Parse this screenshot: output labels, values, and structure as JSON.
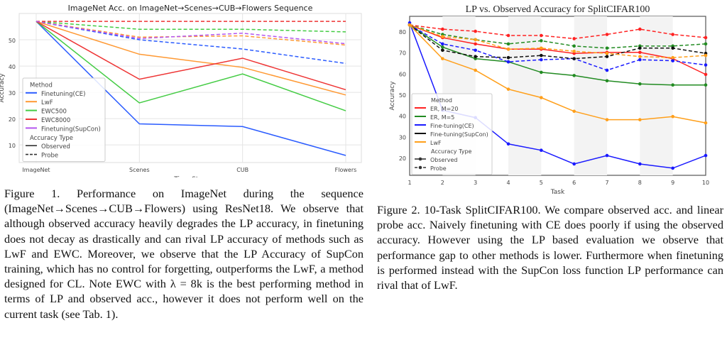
{
  "chart_data": [
    {
      "type": "line",
      "title": "ImageNet Acc. on ImageNet→Scenes→CUB→Flowers Sequence",
      "xlabel": "Time Step",
      "ylabel": "Accuracy",
      "categories": [
        "ImageNet",
        "Scenes",
        "CUB",
        "Flowers"
      ],
      "yticks": [
        10,
        20,
        30,
        40,
        50
      ],
      "ylim": [
        3.3,
        60
      ],
      "grid": true,
      "legend_placement": "lower-left",
      "legend_title": "Method",
      "legend_type_title": "Accuracy Type",
      "legend_types": [
        "Observed",
        "Probe"
      ],
      "series": [
        {
          "name": "Finetuning(CE)",
          "color": "#2b5cff",
          "observed": [
            57,
            18,
            17,
            6
          ],
          "probe": [
            57,
            50,
            46.5,
            41
          ]
        },
        {
          "name": "LwF",
          "color": "#ff9933",
          "observed": [
            57,
            44.5,
            39.5,
            29
          ],
          "probe": [
            57,
            51,
            51.5,
            48
          ]
        },
        {
          "name": "EWC500",
          "color": "#44cc44",
          "observed": [
            57,
            26,
            37,
            23
          ],
          "probe": [
            57,
            54,
            54,
            53
          ]
        },
        {
          "name": "EWC8000",
          "color": "#ee3333",
          "observed": [
            57,
            35,
            43,
            31
          ],
          "probe": [
            57,
            57,
            57,
            57
          ]
        },
        {
          "name": "Finetuning(SupCon)",
          "color": "#b455ee",
          "observed": null,
          "probe": [
            57,
            50.5,
            52.5,
            48.5
          ]
        }
      ]
    },
    {
      "type": "line",
      "title": "LP vs. Observed Accuracy for SplitCIFAR100",
      "xlabel": "Task",
      "ylabel": "Accuracy",
      "categories": [
        "1",
        "2",
        "3",
        "4",
        "5",
        "6",
        "7",
        "8",
        "9",
        "10"
      ],
      "yticks": [
        20,
        30,
        40,
        50,
        60,
        70,
        80
      ],
      "ylim": [
        11.6,
        87.1
      ],
      "grid": false,
      "legend_placement": "lower-left",
      "legend_title": "Method",
      "legend_type_title": "Accuracy Type",
      "legend_types": [
        "Observed",
        "Probe"
      ],
      "series": [
        {
          "name": "ER, M=20",
          "color": "#ff2222",
          "observed": [
            83,
            77,
            74,
            71.5,
            71.5,
            69.5,
            70,
            70,
            67,
            59.5
          ],
          "probe": [
            83,
            81,
            80,
            78,
            78,
            76.5,
            78.5,
            81,
            78.5,
            77
          ]
        },
        {
          "name": "ER, M=5",
          "color": "#228b22",
          "observed": [
            83,
            72.5,
            67,
            65.5,
            60.5,
            59,
            56.5,
            55,
            54.5,
            54.5
          ],
          "probe": [
            83,
            78.5,
            76,
            74,
            75.5,
            73,
            72,
            73,
            73,
            74
          ]
        },
        {
          "name": "Fine-tuning(CE)",
          "color": "#1a1aff",
          "observed": [
            84,
            42.5,
            39,
            26.5,
            23.5,
            17,
            21,
            17,
            15,
            21
          ],
          "probe": [
            83,
            74,
            71,
            65.5,
            66.5,
            67,
            61.5,
            66.5,
            66,
            64
          ]
        },
        {
          "name": "Fine-tuning(SupCon)",
          "color": "#111111",
          "observed": null,
          "probe": [
            83,
            71,
            68,
            67.5,
            68.5,
            67,
            68,
            72,
            72,
            69.5
          ]
        },
        {
          "name": "LwF",
          "color": "#ff9f1a",
          "observed": [
            83,
            67,
            61.5,
            52.5,
            48.5,
            42,
            38,
            38,
            39.5,
            36.5
          ],
          "probe": [
            83,
            77.5,
            76,
            71.5,
            72,
            70.5,
            69.5,
            68,
            67.5,
            68.5
          ]
        }
      ]
    }
  ],
  "captions": {
    "fig1": "Figure 1. Performance on ImageNet during the sequence (ImageNet→Scenes→CUB→Flowers) using ResNet18. We observe that although observed accuracy heavily degrades the LP accuracy, in finetuning does not decay as drastically and can rival LP accuracy of methods such as LwF and EWC. Moreover, we observe that the LP Accuracy of SupCon training, which has no control for forgetting, outperforms the LwF, a method designed for CL. Note EWC with λ = 8k is the best performing method in terms of LP and observed acc., however it does not perform well on the current task (see Tab. 1).",
    "fig2": "Figure 2. 10-Task SplitCIFAR100. We compare observed acc. and linear probe acc. Naively finetuning with CE does poorly if using the observed accuracy. However using the LP based evaluation we observe that performance gap to other methods is lower. Furthermore when finetuning is performed instead with the SupCon loss function LP performance can rival that of LwF."
  }
}
